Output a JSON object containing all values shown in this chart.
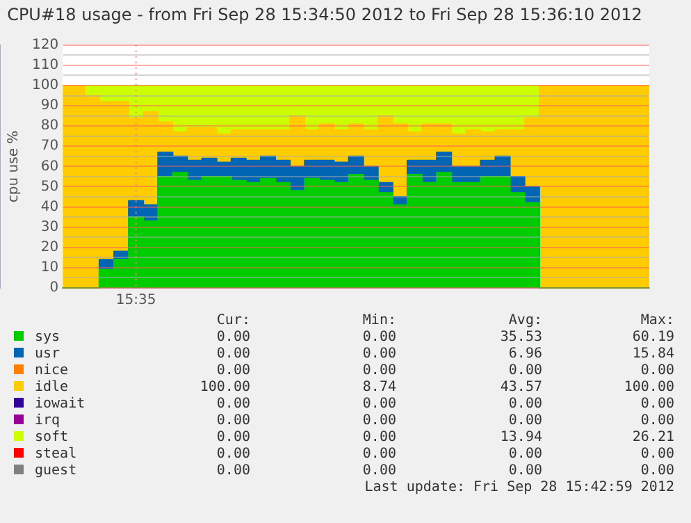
{
  "chart_data": {
    "type": "area",
    "stacked": true,
    "title": "CPU#18 usage - from Fri Sep 28 15:34:50 2012 to Fri Sep 28 15:36:10 2012",
    "ylabel": "cpu use %",
    "categories": [
      null,
      null,
      null,
      null,
      null,
      "15:35",
      null,
      null,
      null,
      null,
      null,
      null,
      null,
      null,
      null,
      null,
      null,
      null,
      null,
      null,
      null,
      null,
      null,
      null,
      null,
      null,
      null,
      null,
      null,
      null,
      null,
      null,
      null,
      null,
      null,
      null,
      null,
      null,
      null,
      null,
      null
    ],
    "ylim": [
      0,
      120
    ],
    "yticks": [
      0,
      {
        "value": 5,
        "label": null
      },
      10,
      {
        "value": 15,
        "label": null
      },
      20,
      {
        "value": 25,
        "label": null
      },
      30,
      {
        "value": 35,
        "label": null
      },
      40,
      {
        "value": 45,
        "label": null
      },
      50,
      {
        "value": 55,
        "label": null
      },
      60,
      {
        "value": 65,
        "label": null
      },
      70,
      {
        "value": 75,
        "label": null
      },
      80,
      {
        "value": 85,
        "label": null
      },
      90,
      {
        "value": 95,
        "label": null
      },
      100,
      {
        "value": 105,
        "label": null
      },
      110,
      {
        "value": 115,
        "label": null
      },
      120
    ],
    "grid": "y",
    "legend": "bottom",
    "marker": "none",
    "ref_lines": [
      {
        "axis": "x",
        "value": "15:35",
        "color": "#ff8080",
        "line_style": "dotted"
      }
    ],
    "series": [
      {
        "name": "sys",
        "color": "#00cc00",
        "values": [
          0,
          0,
          0,
          9,
          14,
          35,
          33,
          55,
          57,
          53,
          55,
          55,
          53,
          52,
          54,
          52,
          48,
          54,
          53,
          52,
          56,
          53,
          47,
          41,
          56,
          52,
          57,
          52,
          52,
          55,
          55,
          47,
          42,
          0,
          0,
          0,
          0,
          0,
          0,
          0,
          0
        ]
      },
      {
        "name": "usr",
        "color": "#0066b3",
        "values": [
          0,
          0,
          0,
          5,
          4,
          8,
          8,
          12,
          8,
          10,
          9,
          7,
          11,
          11,
          11,
          11,
          12,
          9,
          10,
          10,
          9,
          7,
          5,
          4,
          7,
          11,
          10,
          8,
          8,
          8,
          10,
          8,
          8,
          0,
          0,
          0,
          0,
          0,
          0,
          0,
          0
        ]
      },
      {
        "name": "nice",
        "color": "#ff8000",
        "values": [
          null,
          null,
          null,
          null,
          null,
          null,
          null,
          null,
          null,
          null,
          null,
          null,
          null,
          null,
          null,
          null,
          null,
          null,
          null,
          null,
          null,
          null,
          null,
          null,
          null,
          null,
          null,
          null,
          null,
          null,
          null,
          null,
          null,
          null,
          null,
          null,
          null,
          null,
          null,
          null,
          null
        ]
      },
      {
        "name": "idle",
        "color": "#ffcc00",
        "values": [
          100,
          100,
          95,
          78,
          74,
          41,
          46,
          15,
          12,
          16,
          15,
          14,
          14,
          15,
          13,
          15,
          25,
          15,
          18,
          16,
          16,
          18,
          33,
          36,
          14,
          18,
          14,
          16,
          18,
          14,
          13,
          23,
          34,
          100,
          100,
          100,
          100,
          100,
          100,
          100,
          100
        ]
      },
      {
        "name": "iowait",
        "color": "#330099",
        "values": [
          null,
          null,
          null,
          null,
          null,
          null,
          null,
          null,
          null,
          null,
          null,
          null,
          null,
          null,
          null,
          null,
          null,
          null,
          null,
          null,
          null,
          null,
          null,
          null,
          null,
          null,
          null,
          null,
          null,
          null,
          null,
          null,
          null,
          null,
          null,
          null,
          null,
          null,
          null,
          null,
          null
        ]
      },
      {
        "name": "irq",
        "color": "#990099",
        "values": [
          null,
          null,
          null,
          null,
          null,
          null,
          null,
          null,
          null,
          null,
          null,
          null,
          null,
          null,
          null,
          null,
          null,
          null,
          null,
          null,
          null,
          null,
          null,
          null,
          null,
          null,
          null,
          null,
          null,
          null,
          null,
          null,
          null,
          null,
          null,
          null,
          null,
          null,
          null,
          null,
          null
        ]
      },
      {
        "name": "soft",
        "color": "#ccff00",
        "values": [
          0,
          0,
          5,
          8,
          8,
          16,
          13,
          18,
          23,
          21,
          21,
          24,
          22,
          22,
          22,
          22,
          15,
          22,
          19,
          22,
          19,
          22,
          15,
          19,
          23,
          19,
          19,
          24,
          22,
          23,
          22,
          22,
          16,
          0,
          0,
          0,
          0,
          0,
          0,
          0,
          0
        ]
      },
      {
        "name": "steal",
        "color": "#ff0000",
        "values": [
          null,
          null,
          null,
          null,
          null,
          null,
          null,
          null,
          null,
          null,
          null,
          null,
          null,
          null,
          null,
          null,
          null,
          null,
          null,
          null,
          null,
          null,
          null,
          null,
          null,
          null,
          null,
          null,
          null,
          null,
          null,
          null,
          null,
          null,
          null,
          null,
          null,
          null,
          null,
          null,
          null
        ]
      },
      {
        "name": "guest",
        "color": "#808080",
        "values": [
          null,
          null,
          null,
          null,
          null,
          null,
          null,
          null,
          null,
          null,
          null,
          null,
          null,
          null,
          null,
          null,
          null,
          null,
          null,
          null,
          null,
          null,
          null,
          null,
          null,
          null,
          null,
          null,
          null,
          null,
          null,
          null,
          null,
          null,
          null,
          null,
          null,
          null,
          null,
          null,
          null
        ]
      }
    ],
    "annotations": [
      "Cur:",
      "Min:",
      "Avg:",
      "Max:",
      "0.00",
      "0.00",
      "35.53",
      "60.19",
      "0.00",
      "0.00",
      "6.96",
      "15.84",
      "0.00",
      "0.00",
      "0.00",
      "0.00",
      "100.00",
      "8.74",
      "43.57",
      "100.00",
      "0.00",
      "0.00",
      "0.00",
      "0.00",
      "0.00",
      "0.00",
      "0.00",
      "0.00",
      "0.00",
      "0.00",
      "13.94",
      "26.21",
      "0.00",
      "0.00",
      "0.00",
      "0.00",
      "0.00",
      "0.00",
      "0.00",
      "0.00",
      "Last update: Fri Sep 28 15:42:59 2012"
    ]
  }
}
